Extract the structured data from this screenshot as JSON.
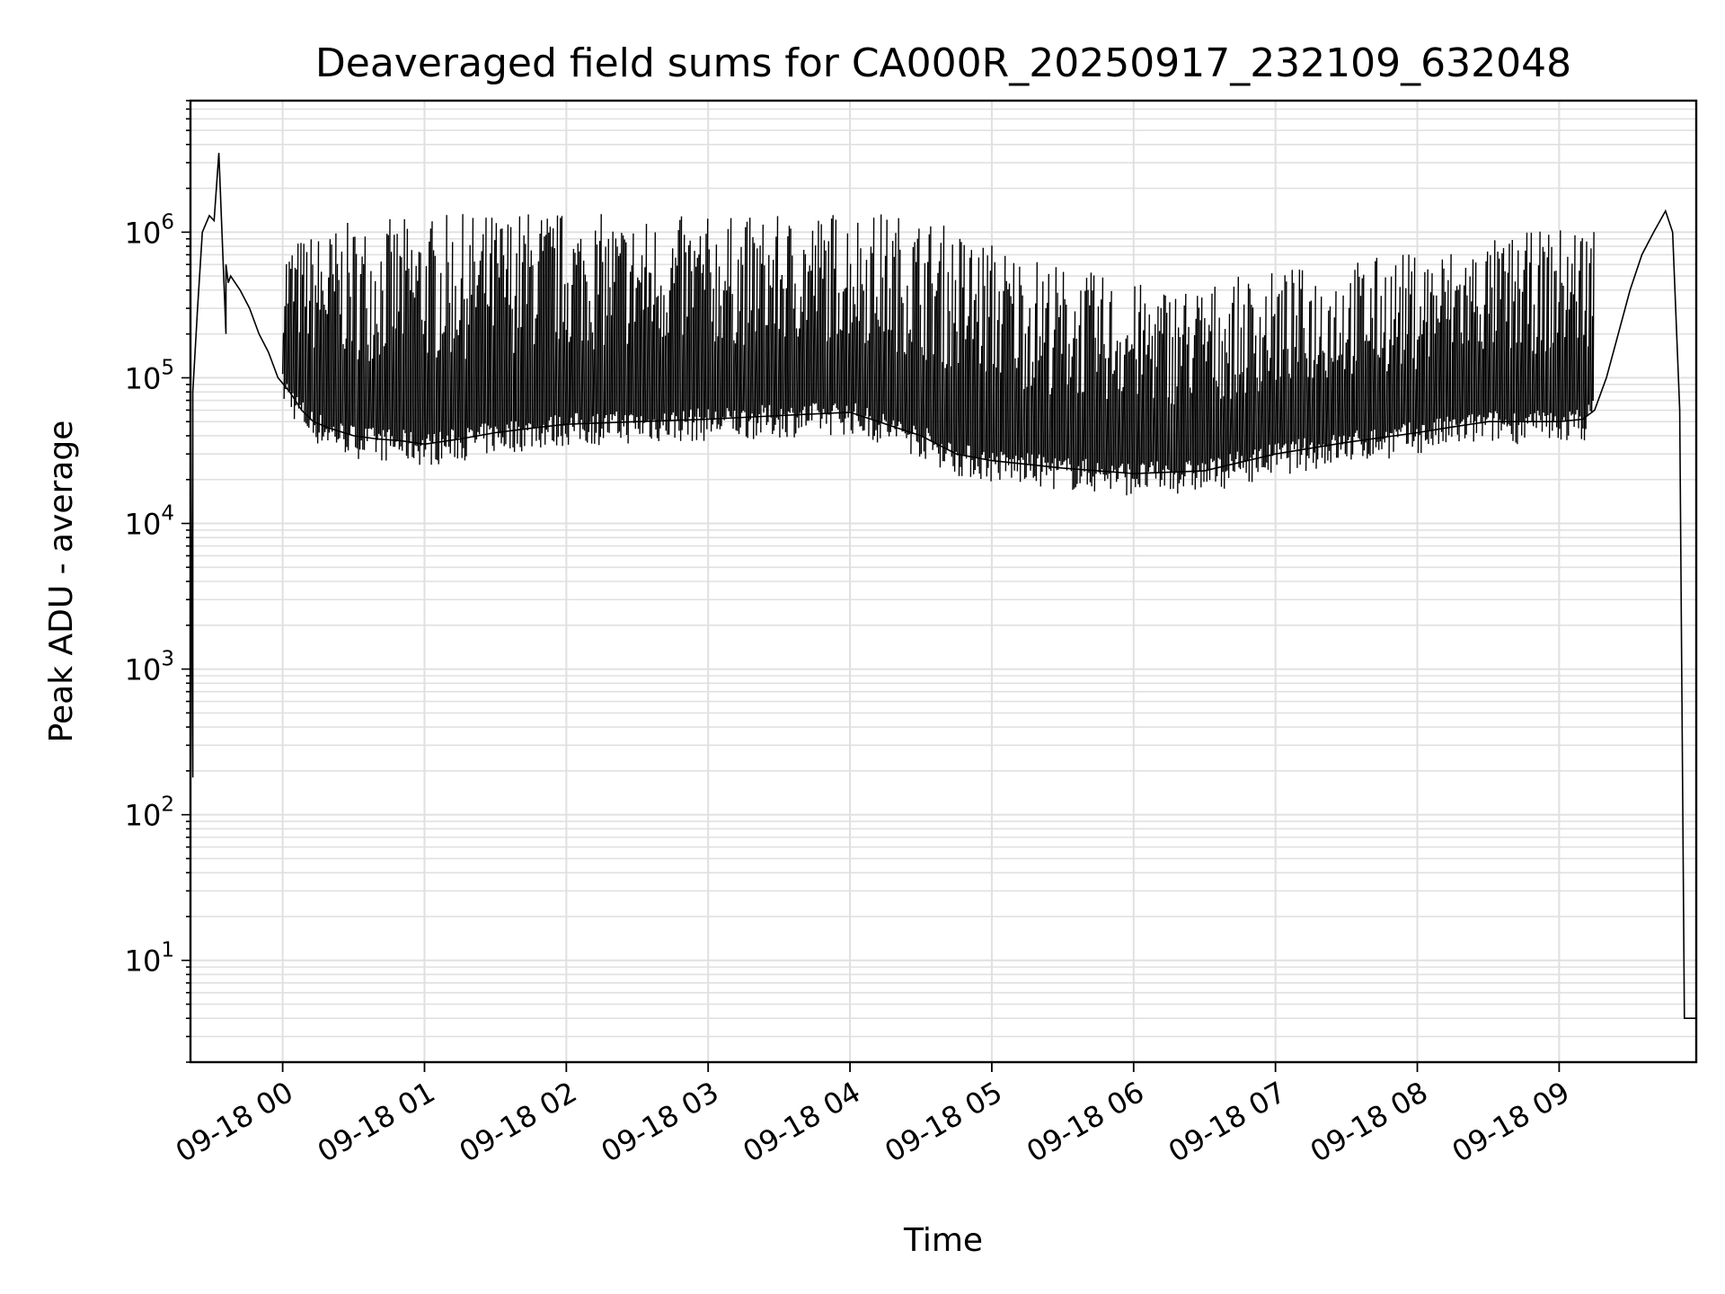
{
  "chart_data": {
    "type": "line",
    "title": "Deaveraged field sums for CA000R_20250917_232109_632048",
    "xlabel": "Time",
    "ylabel": "Peak ADU - average",
    "y_scale": "log",
    "ylim": [
      2,
      8000000
    ],
    "xlim": [
      "2025-09-17T23:21",
      "2025-09-18T09:58"
    ],
    "grid": true,
    "line_color": "#000000",
    "grid_color": "#e0e0e0",
    "x_ticks": [
      {
        "t": "2025-09-18T00:00",
        "label": "09-18 00"
      },
      {
        "t": "2025-09-18T01:00",
        "label": "09-18 01"
      },
      {
        "t": "2025-09-18T02:00",
        "label": "09-18 02"
      },
      {
        "t": "2025-09-18T03:00",
        "label": "09-18 03"
      },
      {
        "t": "2025-09-18T04:00",
        "label": "09-18 04"
      },
      {
        "t": "2025-09-18T05:00",
        "label": "09-18 05"
      },
      {
        "t": "2025-09-18T06:00",
        "label": "09-18 06"
      },
      {
        "t": "2025-09-18T07:00",
        "label": "09-18 07"
      },
      {
        "t": "2025-09-18T08:00",
        "label": "09-18 08"
      },
      {
        "t": "2025-09-18T09:00",
        "label": "09-18 09"
      }
    ],
    "y_ticks": [
      {
        "value": 10,
        "base": "10",
        "exp": "1"
      },
      {
        "value": 100,
        "base": "10",
        "exp": "2"
      },
      {
        "value": 1000,
        "base": "10",
        "exp": "3"
      },
      {
        "value": 10000,
        "base": "10",
        "exp": "4"
      },
      {
        "value": 100000,
        "base": "10",
        "exp": "5"
      },
      {
        "value": 1000000,
        "base": "10",
        "exp": "6"
      }
    ],
    "series": [
      {
        "x": [
          "2025-09-17T23:21",
          "2025-09-17T23:21",
          "2025-09-17T23:22",
          "2025-09-17T23:22",
          "2025-09-17T23:24",
          "2025-09-17T23:26",
          "2025-09-17T23:29",
          "2025-09-17T23:31",
          "2025-09-17T23:33",
          "2025-09-17T23:36",
          "2025-09-17T23:36",
          "2025-09-17T23:37",
          "2025-09-17T23:38",
          "2025-09-17T23:42",
          "2025-09-17T23:46",
          "2025-09-17T23:50",
          "2025-09-17T23:54",
          "2025-09-17T23:58",
          "2025-09-18T00:03",
          "2025-09-18T00:08",
          "2025-09-18T00:13",
          "2025-09-18T00:20",
          "2025-09-18T00:30",
          "2025-09-18T00:40",
          "2025-09-18T00:50",
          "2025-09-18T01:00",
          "2025-09-18T01:15",
          "2025-09-18T01:30",
          "2025-09-18T01:45",
          "2025-09-18T02:00",
          "2025-09-18T02:30",
          "2025-09-18T03:00",
          "2025-09-18T03:30",
          "2025-09-18T04:00",
          "2025-09-18T04:30",
          "2025-09-18T04:45",
          "2025-09-18T05:00",
          "2025-09-18T05:30",
          "2025-09-18T06:00",
          "2025-09-18T06:30",
          "2025-09-18T07:00",
          "2025-09-18T07:30",
          "2025-09-18T08:00",
          "2025-09-18T08:15",
          "2025-09-18T08:30",
          "2025-09-18T08:45",
          "2025-09-18T09:00",
          "2025-09-18T09:10",
          "2025-09-18T09:15",
          "2025-09-18T09:20",
          "2025-09-18T09:25",
          "2025-09-18T09:30",
          "2025-09-18T09:35",
          "2025-09-18T09:40",
          "2025-09-18T09:45",
          "2025-09-18T09:48",
          "2025-09-18T09:51",
          "2025-09-18T09:53",
          "2025-09-18T09:54",
          "2025-09-18T09:55",
          "2025-09-18T09:58"
        ],
        "y": [
          2,
          80000,
          180,
          80000,
          300000,
          1000000,
          1300000,
          1200000,
          3500000,
          200000,
          600000,
          450000,
          500000,
          400000,
          300000,
          200000,
          150000,
          100000,
          80000,
          60000,
          50000,
          45000,
          40000,
          38000,
          37000,
          35000,
          38000,
          42000,
          45000,
          48000,
          50000,
          52000,
          55000,
          58000,
          40000,
          30000,
          27000,
          24000,
          22000,
          23000,
          30000,
          36000,
          42000,
          46000,
          50000,
          50000,
          50000,
          52000,
          60000,
          100000,
          200000,
          400000,
          700000,
          1000000,
          1400000,
          1000000,
          60000,
          4,
          4,
          4,
          4
        ]
      }
    ],
    "envelope": {
      "x": [
        "2025-09-18T00:00",
        "2025-09-18T00:30",
        "2025-09-18T01:00",
        "2025-09-18T01:30",
        "2025-09-18T01:50",
        "2025-09-18T02:00",
        "2025-09-18T02:30",
        "2025-09-18T03:00",
        "2025-09-18T03:30",
        "2025-09-18T04:00",
        "2025-09-18T04:30",
        "2025-09-18T05:00",
        "2025-09-18T05:30",
        "2025-09-18T06:00",
        "2025-09-18T06:30",
        "2025-09-18T07:00",
        "2025-09-18T07:30",
        "2025-09-18T08:00",
        "2025-09-18T08:30",
        "2025-09-18T09:00",
        "2025-09-18T09:15"
      ],
      "upper": [
        900000,
        1200000,
        1300000,
        1400000,
        1500000,
        1400000,
        1300000,
        1300000,
        1300000,
        1500000,
        1300000,
        900000,
        600000,
        450000,
        450000,
        550000,
        650000,
        750000,
        900000,
        1100000,
        1300000
      ]
    }
  }
}
